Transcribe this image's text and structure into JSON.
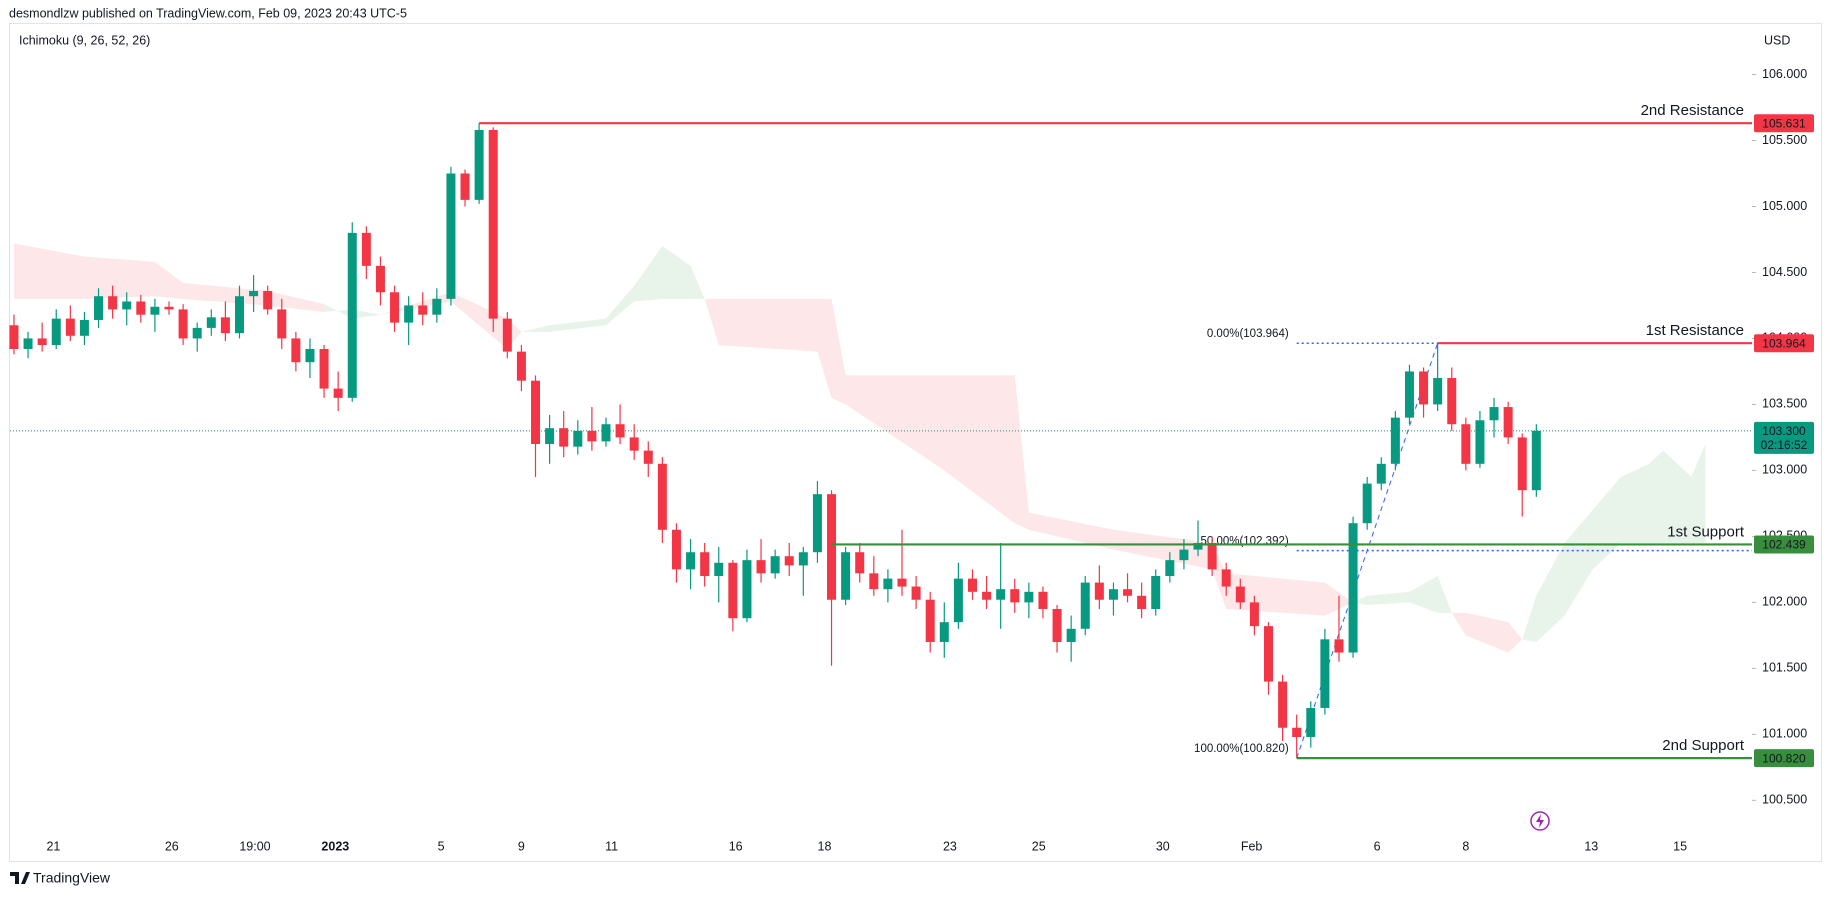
{
  "header": {
    "text": "desmondlzw published on TradingView.com, Feb 09, 2023 20:43 UTC-5"
  },
  "footer": {
    "brand": "TradingView"
  },
  "chart_data": {
    "type": "candlestick",
    "indicator": "Ichimoku (9, 26, 52, 26)",
    "currency": "USD",
    "colors": {
      "up": "#089981",
      "down": "#f23645"
    },
    "candles": [
      [
        104.1,
        104.18,
        103.88,
        103.92
      ],
      [
        103.92,
        104.05,
        103.85,
        104.0
      ],
      [
        104.0,
        104.12,
        103.9,
        103.95
      ],
      [
        103.95,
        104.22,
        103.92,
        104.15
      ],
      [
        104.15,
        104.25,
        103.98,
        104.02
      ],
      [
        104.02,
        104.2,
        103.95,
        104.14
      ],
      [
        104.14,
        104.38,
        104.08,
        104.32
      ],
      [
        104.32,
        104.4,
        104.15,
        104.22
      ],
      [
        104.22,
        104.35,
        104.1,
        104.28
      ],
      [
        104.28,
        104.33,
        104.12,
        104.18
      ],
      [
        104.18,
        104.3,
        104.05,
        104.24
      ],
      [
        104.24,
        104.28,
        104.18,
        104.22
      ],
      [
        104.22,
        104.26,
        103.95,
        104.0
      ],
      [
        104.0,
        104.12,
        103.9,
        104.08
      ],
      [
        104.08,
        104.22,
        104.02,
        104.16
      ],
      [
        104.16,
        104.28,
        103.98,
        104.04
      ],
      [
        104.04,
        104.4,
        104.0,
        104.32
      ],
      [
        104.32,
        104.48,
        104.2,
        104.36
      ],
      [
        104.36,
        104.4,
        104.18,
        104.22
      ],
      [
        104.22,
        104.3,
        103.92,
        104.0
      ],
      [
        104.0,
        104.05,
        103.75,
        103.82
      ],
      [
        103.82,
        104.0,
        103.7,
        103.92
      ],
      [
        103.92,
        103.95,
        103.55,
        103.62
      ],
      [
        103.62,
        103.75,
        103.45,
        103.55
      ],
      [
        103.55,
        104.88,
        103.52,
        104.8
      ],
      [
        104.8,
        104.85,
        104.45,
        104.55
      ],
      [
        104.55,
        104.62,
        104.25,
        104.35
      ],
      [
        104.35,
        104.4,
        104.05,
        104.12
      ],
      [
        104.12,
        104.32,
        103.95,
        104.25
      ],
      [
        104.25,
        104.35,
        104.1,
        104.18
      ],
      [
        104.18,
        104.38,
        104.12,
        104.3
      ],
      [
        104.3,
        105.3,
        104.25,
        105.25
      ],
      [
        105.25,
        105.28,
        105.0,
        105.05
      ],
      [
        105.05,
        105.631,
        105.02,
        105.58
      ],
      [
        105.58,
        105.6,
        104.05,
        104.15
      ],
      [
        104.15,
        104.2,
        103.85,
        103.9
      ],
      [
        103.9,
        103.95,
        103.6,
        103.68
      ],
      [
        103.68,
        103.72,
        102.95,
        103.2
      ],
      [
        103.2,
        103.42,
        103.05,
        103.32
      ],
      [
        103.32,
        103.45,
        103.1,
        103.18
      ],
      [
        103.18,
        103.38,
        103.12,
        103.3
      ],
      [
        103.3,
        103.48,
        103.15,
        103.22
      ],
      [
        103.22,
        103.4,
        103.18,
        103.35
      ],
      [
        103.35,
        103.5,
        103.2,
        103.25
      ],
      [
        103.25,
        103.35,
        103.08,
        103.15
      ],
      [
        103.15,
        103.22,
        102.95,
        103.05
      ],
      [
        103.05,
        103.1,
        102.45,
        102.55
      ],
      [
        102.55,
        102.6,
        102.15,
        102.25
      ],
      [
        102.25,
        102.48,
        102.1,
        102.38
      ],
      [
        102.38,
        102.45,
        102.12,
        102.2
      ],
      [
        102.2,
        102.42,
        102.0,
        102.3
      ],
      [
        102.3,
        102.32,
        101.78,
        101.88
      ],
      [
        101.88,
        102.4,
        101.85,
        102.32
      ],
      [
        102.32,
        102.48,
        102.15,
        102.22
      ],
      [
        102.22,
        102.4,
        102.18,
        102.35
      ],
      [
        102.35,
        102.45,
        102.2,
        102.28
      ],
      [
        102.28,
        102.42,
        102.05,
        102.38
      ],
      [
        102.38,
        102.92,
        102.3,
        102.82
      ],
      [
        102.82,
        102.85,
        101.52,
        102.02
      ],
      [
        102.02,
        102.42,
        101.98,
        102.38
      ],
      [
        102.38,
        102.45,
        102.15,
        102.22
      ],
      [
        102.22,
        102.35,
        102.05,
        102.1
      ],
      [
        102.1,
        102.25,
        102.0,
        102.18
      ],
      [
        102.18,
        102.55,
        102.05,
        102.12
      ],
      [
        102.12,
        102.2,
        101.95,
        102.02
      ],
      [
        102.02,
        102.08,
        101.62,
        101.7
      ],
      [
        101.7,
        102.0,
        101.58,
        101.85
      ],
      [
        101.85,
        102.3,
        101.8,
        102.18
      ],
      [
        102.18,
        102.25,
        102.02,
        102.08
      ],
      [
        102.08,
        102.2,
        101.95,
        102.02
      ],
      [
        102.02,
        102.45,
        101.8,
        102.1
      ],
      [
        102.1,
        102.18,
        101.92,
        102.0
      ],
      [
        102.0,
        102.15,
        101.88,
        102.08
      ],
      [
        102.08,
        102.12,
        101.88,
        101.95
      ],
      [
        101.95,
        101.98,
        101.62,
        101.7
      ],
      [
        101.7,
        101.9,
        101.55,
        101.8
      ],
      [
        101.8,
        102.2,
        101.75,
        102.15
      ],
      [
        102.15,
        102.28,
        101.95,
        102.02
      ],
      [
        102.02,
        102.15,
        101.9,
        102.1
      ],
      [
        102.1,
        102.22,
        102.0,
        102.05
      ],
      [
        102.05,
        102.15,
        101.88,
        101.95
      ],
      [
        101.95,
        102.25,
        101.9,
        102.2
      ],
      [
        102.2,
        102.38,
        102.15,
        102.32
      ],
      [
        102.32,
        102.48,
        102.25,
        102.4
      ],
      [
        102.4,
        102.62,
        102.35,
        102.45
      ],
      [
        102.45,
        102.5,
        102.2,
        102.25
      ],
      [
        102.25,
        102.3,
        102.05,
        102.12
      ],
      [
        102.12,
        102.18,
        101.95,
        102.0
      ],
      [
        102.0,
        102.05,
        101.75,
        101.82
      ],
      [
        101.82,
        101.85,
        101.3,
        101.4
      ],
      [
        101.4,
        101.45,
        100.95,
        101.05
      ],
      [
        101.05,
        101.15,
        100.82,
        100.98
      ],
      [
        100.98,
        101.25,
        100.9,
        101.2
      ],
      [
        101.2,
        101.8,
        101.15,
        101.72
      ],
      [
        101.72,
        102.05,
        101.55,
        101.62
      ],
      [
        101.62,
        102.65,
        101.58,
        102.6
      ],
      [
        102.6,
        102.95,
        102.55,
        102.9
      ],
      [
        102.9,
        103.1,
        102.85,
        103.05
      ],
      [
        103.05,
        103.45,
        103.0,
        103.4
      ],
      [
        103.4,
        103.8,
        103.35,
        103.75
      ],
      [
        103.75,
        103.78,
        103.4,
        103.5
      ],
      [
        103.5,
        103.964,
        103.45,
        103.7
      ],
      [
        103.7,
        103.78,
        103.3,
        103.35
      ],
      [
        103.35,
        103.4,
        103.0,
        103.05
      ],
      [
        103.05,
        103.45,
        103.02,
        103.38
      ],
      [
        103.38,
        103.55,
        103.25,
        103.48
      ],
      [
        103.48,
        103.52,
        103.2,
        103.25
      ],
      [
        103.25,
        103.28,
        102.65,
        102.85
      ],
      [
        102.85,
        103.35,
        102.8,
        103.3
      ]
    ],
    "xlim": [
      -0.28,
      123.3
    ],
    "xticks": [
      {
        "value": 2.8,
        "label": "21"
      },
      {
        "value": 11.2,
        "label": "26"
      },
      {
        "value": 17.1,
        "label": "19:00"
      },
      {
        "value": 22.8,
        "label": "2023",
        "bold": true
      },
      {
        "value": 30.3,
        "label": "5"
      },
      {
        "value": 36.0,
        "label": "9"
      },
      {
        "value": 42.4,
        "label": "11"
      },
      {
        "value": 51.2,
        "label": "16"
      },
      {
        "value": 57.5,
        "label": "18"
      },
      {
        "value": 66.4,
        "label": "23"
      },
      {
        "value": 72.7,
        "label": "25"
      },
      {
        "value": 81.5,
        "label": "30"
      },
      {
        "value": 87.8,
        "label": "Feb"
      },
      {
        "value": 96.7,
        "label": "6"
      },
      {
        "value": 103.0,
        "label": "8"
      },
      {
        "value": 111.9,
        "label": "13"
      },
      {
        "value": 118.2,
        "label": "15"
      }
    ],
    "ylim": [
      100.26,
      106.36
    ],
    "yticks": [
      {
        "value": 100.5,
        "label": "100.500"
      },
      {
        "value": 101,
        "label": "101.000"
      },
      {
        "value": 101.5,
        "label": "101.500"
      },
      {
        "value": 102,
        "label": "102.000"
      },
      {
        "value": 102.5,
        "label": "102.500"
      },
      {
        "value": 103,
        "label": "103.000"
      },
      {
        "value": 103.5,
        "label": "103.500"
      },
      {
        "value": 104,
        "label": "104.000"
      },
      {
        "value": 104.5,
        "label": "104.500"
      },
      {
        "value": 105,
        "label": "105.000"
      },
      {
        "value": 105.5,
        "label": "105.500"
      },
      {
        "value": 106,
        "label": "106.000"
      }
    ],
    "cloud": {
      "x": [
        0,
        5,
        10,
        12,
        18,
        22,
        24,
        26,
        31,
        35,
        36,
        38,
        42,
        44,
        46,
        48,
        49,
        50,
        57,
        58,
        59,
        66,
        71,
        72,
        78,
        85,
        86,
        93,
        95,
        96,
        99,
        101,
        102,
        103,
        106,
        107,
        108,
        110,
        112,
        114,
        116,
        117,
        119,
        120
      ],
      "span_a": [
        104.3,
        104.3,
        104.32,
        104.3,
        104.25,
        104.2,
        104.22,
        104.18,
        104.28,
        103.92,
        104.05,
        104.1,
        104.15,
        104.4,
        104.7,
        104.55,
        104.3,
        103.95,
        103.9,
        103.55,
        103.5,
        103.0,
        102.6,
        102.55,
        102.4,
        102.25,
        101.95,
        101.9,
        102.0,
        102.05,
        102.08,
        102.2,
        101.92,
        101.75,
        101.62,
        101.72,
        102.05,
        102.45,
        102.7,
        102.95,
        103.05,
        103.15,
        102.95,
        103.2
      ],
      "span_b": [
        104.72,
        104.62,
        104.58,
        104.42,
        104.36,
        104.26,
        104.15,
        104.18,
        104.35,
        104.15,
        104.05,
        104.05,
        104.1,
        104.28,
        104.3,
        104.3,
        104.3,
        104.3,
        104.3,
        104.3,
        103.72,
        103.72,
        103.72,
        102.68,
        102.55,
        102.45,
        102.22,
        102.15,
        102.0,
        101.98,
        102.0,
        101.92,
        101.92,
        101.92,
        101.85,
        101.72,
        101.7,
        101.9,
        102.25,
        102.45,
        102.45,
        102.45,
        102.45,
        102.45
      ],
      "colors": {
        "bull": "rgba(67,160,71,0.12)",
        "bear": "rgba(242,54,69,0.12)"
      }
    },
    "levels": [
      {
        "label": "2nd Resistance",
        "value": 105.631,
        "start": 33,
        "color": "#f23645"
      },
      {
        "label": "1st Resistance",
        "value": 103.964,
        "start": 101,
        "color": "#f23645"
      },
      {
        "label": "1st Support",
        "value": 102.439,
        "start": 58,
        "color": "#388e3c"
      },
      {
        "label": "2nd Support",
        "value": 100.82,
        "value_label": "100.820",
        "start": 91,
        "color": "#388e3c"
      }
    ],
    "fib": {
      "from": 91,
      "to": 101,
      "color": "#2962ff",
      "levels": [
        {
          "label": "0.00%(103.964)",
          "value": 103.964
        },
        {
          "label": "50.00%(102.392)",
          "value": 102.392
        },
        {
          "label": "100.00%(100.820)",
          "value": 100.82
        }
      ]
    },
    "last_price": {
      "value": 103.3,
      "value_label": "103.300",
      "countdown": "02:16:52",
      "color": "#089981"
    }
  }
}
